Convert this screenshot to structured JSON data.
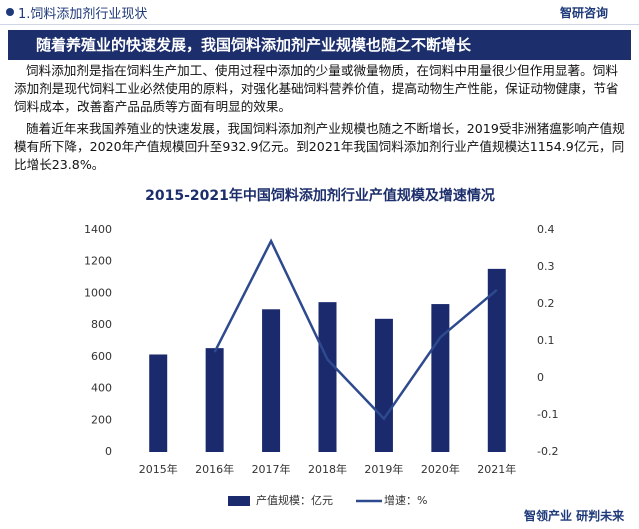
{
  "header": {
    "section": "1.饲料添加剂行业现状",
    "logo": "智研咨询"
  },
  "banner": "随着养殖业的快速发展，我国饲料添加剂产业规模也随之不断增长",
  "paragraphs": [
    "饲料添加剂是指在饲料生产加工、使用过程中添加的少量或微量物质，在饲料中用量很少但作用显著。饲料添加剂是现代饲料工业必然使用的原料，对强化基础饲料营养价值，提高动物生产性能，保证动物健康，节省饲料成本，改善畜产品品质等方面有明显的效果。",
    "随着近年来我国养殖业的快速发展，我国饲料添加剂产业规模也随之不断增长，2019受非洲猪瘟影响产值规模有所下降，2020年产值规模回升至932.9亿元。到2021年我国饲料添加剂行业产值规模达1154.9亿元，同比增长23.8%。"
  ],
  "footer": "智领产业 研判未来",
  "chart_data": {
    "type": "bar_line",
    "title": "2015-2021年中国饲料添加剂行业产值规模及增速情况",
    "categories": [
      "2015年",
      "2016年",
      "2017年",
      "2018年",
      "2019年",
      "2020年",
      "2021年"
    ],
    "series": [
      {
        "name": "产值规模：亿元",
        "color": "#1a2a6c",
        "type": "bar",
        "values": [
          615,
          655,
          900,
          945,
          840,
          932.9,
          1154.9
        ]
      },
      {
        "name": "增速：%",
        "color": "#2e4a8f",
        "type": "line",
        "axis": "y2",
        "values": [
          null,
          0.07,
          0.37,
          0.05,
          -0.11,
          0.11,
          0.238
        ]
      }
    ],
    "ylim": [
      0,
      1400
    ],
    "yticks": [
      0,
      200,
      400,
      600,
      800,
      1000,
      1200,
      1400
    ],
    "y2lim": [
      -0.2,
      0.4
    ],
    "y2ticks": [
      -0.2,
      -0.1,
      0,
      0.1,
      0.2,
      0.3,
      0.4
    ],
    "legend": "bottom"
  }
}
